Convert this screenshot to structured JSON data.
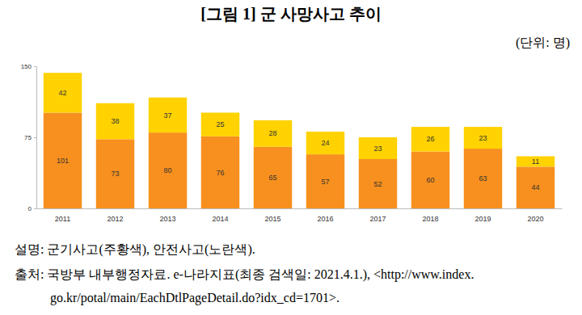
{
  "chart_data": {
    "type": "bar",
    "title": "[그림 1] 군 사망사고 추이",
    "subtitle": "(단위: 명)",
    "categories": [
      "2011",
      "2012",
      "2013",
      "2014",
      "2015",
      "2016",
      "2017",
      "2018",
      "2019",
      "2020"
    ],
    "series": [
      {
        "color": "#f7901e",
        "values": [
          101,
          73,
          80,
          76,
          65,
          57,
          52,
          60,
          63,
          44
        ]
      },
      {
        "color": "#ffd200",
        "values": [
          42,
          38,
          37,
          25,
          28,
          24,
          23,
          26,
          23,
          11
        ]
      }
    ],
    "stacked": true,
    "data_labels": true,
    "grid": false,
    "ylim": [
      0,
      150
    ],
    "yticks": [
      0,
      75,
      150
    ],
    "annotations": [
      "설명: 군기사고(주황색), 안전사고(노란색).",
      "출처: 국방부 내부행정자료. e-나라지표(최종 검색일: 2021.4.1.), <http://www.index.",
      "go.kr/potal/main/EachDtlPageDetail.do?idx_cd=1701>."
    ]
  }
}
